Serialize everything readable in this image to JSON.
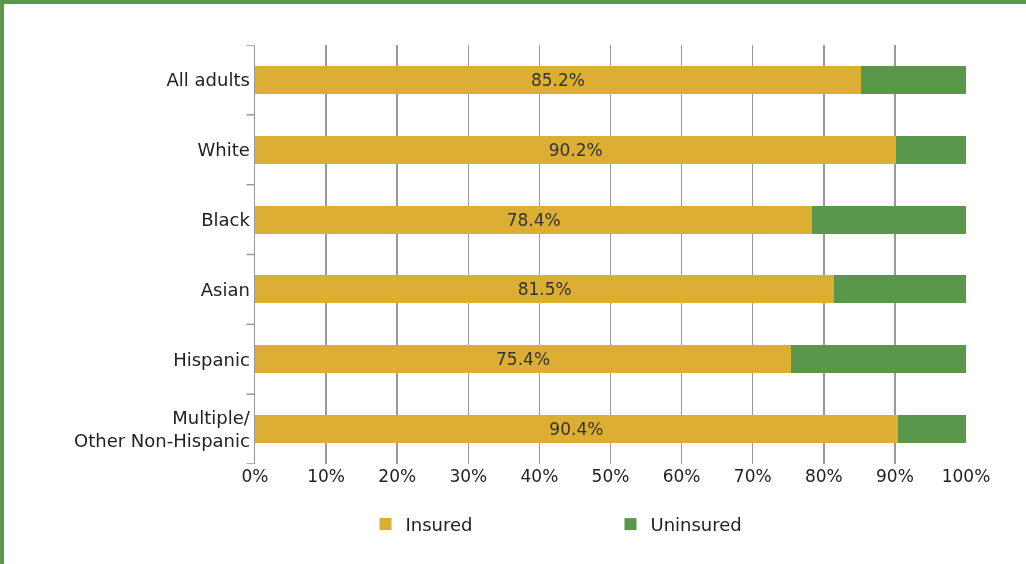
{
  "chart_data": {
    "type": "bar",
    "orientation": "horizontal",
    "stacked": true,
    "categories": [
      "All adults",
      "White",
      "Black",
      "Asian",
      "Hispanic",
      "Multiple/\nOther Non-Hispanic"
    ],
    "series": [
      {
        "name": "Insured",
        "color": "#dcae34",
        "values": [
          85.2,
          90.2,
          78.4,
          81.5,
          75.4,
          90.4
        ],
        "value_labels": [
          "85.2%",
          "90.2%",
          "78.4%",
          "81.5%",
          "75.4%",
          "90.4%"
        ]
      },
      {
        "name": "Uninsured",
        "color": "#5b974b",
        "values": [
          14.8,
          9.8,
          21.6,
          18.5,
          24.6,
          9.6
        ]
      }
    ],
    "xlim": [
      0,
      100
    ],
    "xticks": [
      {
        "value": 0,
        "label": "0%"
      },
      {
        "value": 10,
        "label": "10%"
      },
      {
        "value": 20,
        "label": "20%"
      },
      {
        "value": 30,
        "label": "30%"
      },
      {
        "value": 40,
        "label": "40%"
      },
      {
        "value": 50,
        "label": "50%"
      },
      {
        "value": 60,
        "label": "60%"
      },
      {
        "value": 70,
        "label": "70%"
      },
      {
        "value": 80,
        "label": "80%"
      },
      {
        "value": 90,
        "label": "90%"
      },
      {
        "value": 100,
        "label": "100%"
      }
    ],
    "grid": "x",
    "legend": "bottom"
  }
}
